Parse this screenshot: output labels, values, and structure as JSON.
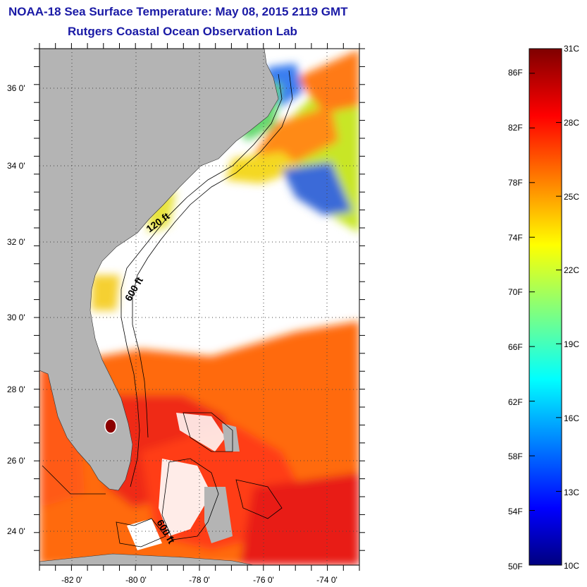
{
  "title": "NOAA-18 Sea Surface Temperature:  May 08, 2015 2119 GMT",
  "subtitle": "Rutgers Coastal Ocean Observation Lab",
  "map": {
    "lat_labels": [
      "36 0'",
      "34 0'",
      "32 0'",
      "30 0'",
      "28 0'",
      "26 0'",
      "24 0'"
    ],
    "lon_labels": [
      "-82 0'",
      "-80 0'",
      "-78 0'",
      "-76 0'",
      "-74 0'"
    ],
    "contour_labels": [
      "120 ft",
      "600 ft",
      "600 ft"
    ],
    "land_color": "#b4b4b4",
    "cloud_color": "#ffffff"
  },
  "colorbar": {
    "fahrenheit_labels": [
      "86F",
      "82F",
      "78F",
      "74F",
      "70F",
      "66F",
      "62F",
      "58F",
      "54F",
      "50F"
    ],
    "celsius_labels": [
      "31C",
      "28C",
      "25C",
      "22C",
      "19C",
      "16C",
      "13C",
      "10C"
    ],
    "min_c": 10,
    "max_c": 31
  }
}
